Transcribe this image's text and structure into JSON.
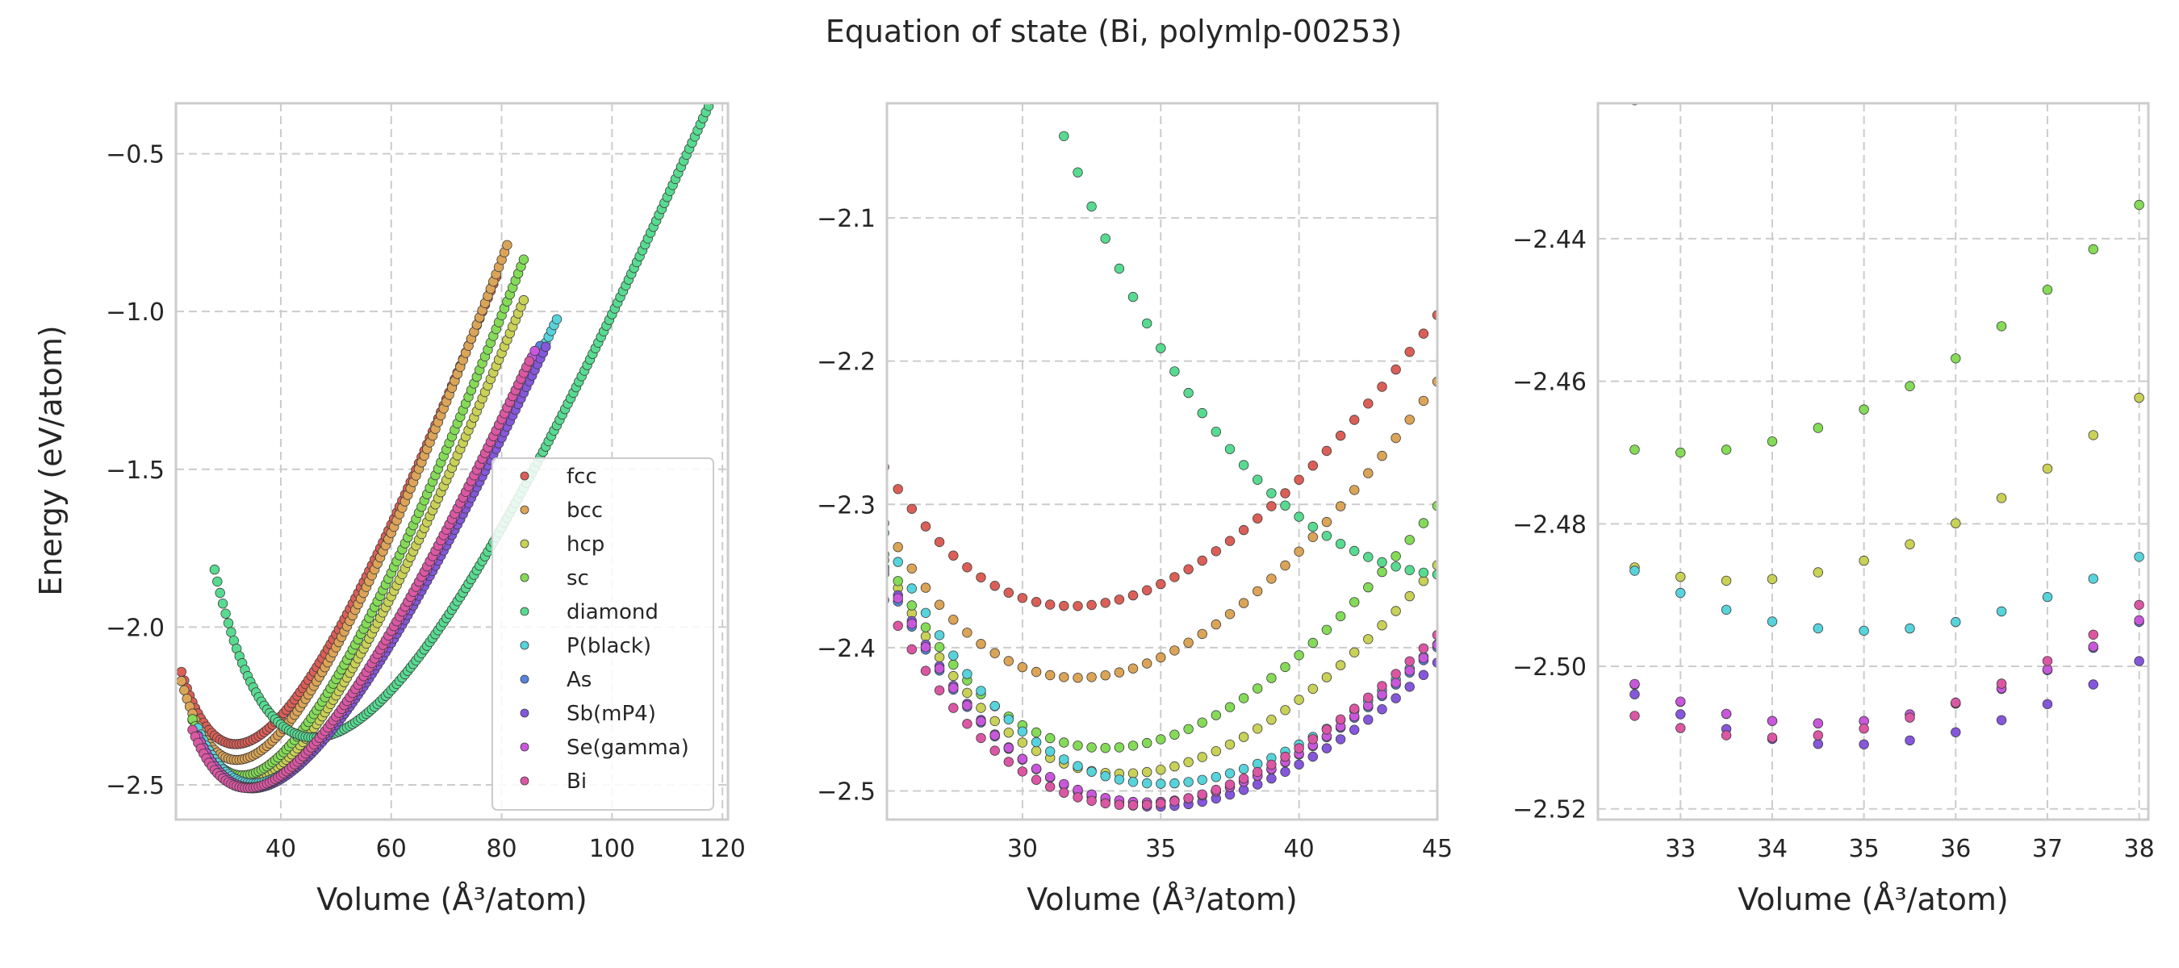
{
  "chart_data": {
    "type": "scatter",
    "title": "Equation of state (Bi, polymlp-00253)",
    "ylabel": "Energy (eV/atom)",
    "xlabel": "Volume (Å³/atom)",
    "legend": {
      "placement": "lower-right",
      "entries": [
        "fcc",
        "bcc",
        "hcp",
        "sc",
        "diamond",
        "P(black)",
        "As",
        "Sb(mP4)",
        "Se(gamma)",
        "Bi"
      ]
    },
    "series": [
      {
        "name": "fcc",
        "color": "#db5f57",
        "v0": 31.8,
        "e0": -2.371,
        "b": 0.00165,
        "vmin": 22,
        "vmax": 79
      },
      {
        "name": "bcc",
        "color": "#dba457",
        "v0": 32.0,
        "e0": -2.421,
        "b": 0.00172,
        "vmin": 22,
        "vmax": 81
      },
      {
        "name": "hcp",
        "color": "#c9d157",
        "v0": 33.6,
        "e0": -2.488,
        "b": 0.0015,
        "vmin": 24,
        "vmax": 84
      },
      {
        "name": "sc",
        "color": "#84db57",
        "v0": 33.0,
        "e0": -2.47,
        "b": 0.0016,
        "vmin": 24,
        "vmax": 84
      },
      {
        "name": "diamond",
        "color": "#57db91",
        "v0": 46.0,
        "e0": -2.35,
        "b": 0.001,
        "vmin": 28,
        "vmax": 120
      },
      {
        "name": "P(black)",
        "color": "#57d3db",
        "v0": 35.0,
        "e0": -2.495,
        "b": 0.00125,
        "vmin": 25,
        "vmax": 90
      },
      {
        "name": "As",
        "color": "#5784db",
        "v0": 34.5,
        "e0": -2.508,
        "b": 0.00128,
        "vmin": 25,
        "vmax": 87
      },
      {
        "name": "Sb(mP4)",
        "color": "#8457db",
        "v0": 34.8,
        "e0": -2.511,
        "b": 0.00125,
        "vmin": 25,
        "vmax": 88
      },
      {
        "name": "Se(gamma)",
        "color": "#c957db",
        "v0": 34.5,
        "e0": -2.508,
        "b": 0.0013,
        "vmin": 25,
        "vmax": 86
      },
      {
        "name": "Bi",
        "color": "#db57a4",
        "v0": 34.0,
        "e0": -2.51,
        "b": 0.0013,
        "vmin": 24,
        "vmax": 85
      }
    ],
    "panels": [
      {
        "xlim": [
          21,
          121
        ],
        "ylim": [
          -2.61,
          -0.34
        ],
        "xticks": [
          40,
          60,
          80,
          100,
          120
        ],
        "yticks": [
          -2.5,
          -2.0,
          -1.5,
          -1.0,
          -0.5
        ],
        "xtick_labels": [
          "40",
          "60",
          "80",
          "100",
          "120"
        ],
        "ytick_labels": [
          "−2.5",
          "−2.0",
          "−1.5",
          "−1.0",
          "−0.5"
        ]
      },
      {
        "xlim": [
          25.1,
          45
        ],
        "ylim": [
          -2.52,
          -2.02
        ],
        "xticks": [
          30,
          35,
          40,
          45
        ],
        "yticks": [
          -2.5,
          -2.4,
          -2.3,
          -2.2,
          -2.1
        ],
        "xtick_labels": [
          "30",
          "35",
          "40",
          "45"
        ],
        "ytick_labels": [
          "−2.5",
          "−2.4",
          "−2.3",
          "−2.2",
          "−2.1"
        ]
      },
      {
        "xlim": [
          32.1,
          38.1
        ],
        "ylim": [
          -2.5215,
          -2.421
        ],
        "xticks": [
          33,
          34,
          35,
          36,
          37,
          38
        ],
        "yticks": [
          -2.52,
          -2.5,
          -2.48,
          -2.46,
          -2.44
        ],
        "xtick_labels": [
          "33",
          "34",
          "35",
          "36",
          "37",
          "38"
        ],
        "ytick_labels": [
          "−2.52",
          "−2.50",
          "−2.48",
          "−2.46",
          "−2.44"
        ]
      }
    ]
  }
}
